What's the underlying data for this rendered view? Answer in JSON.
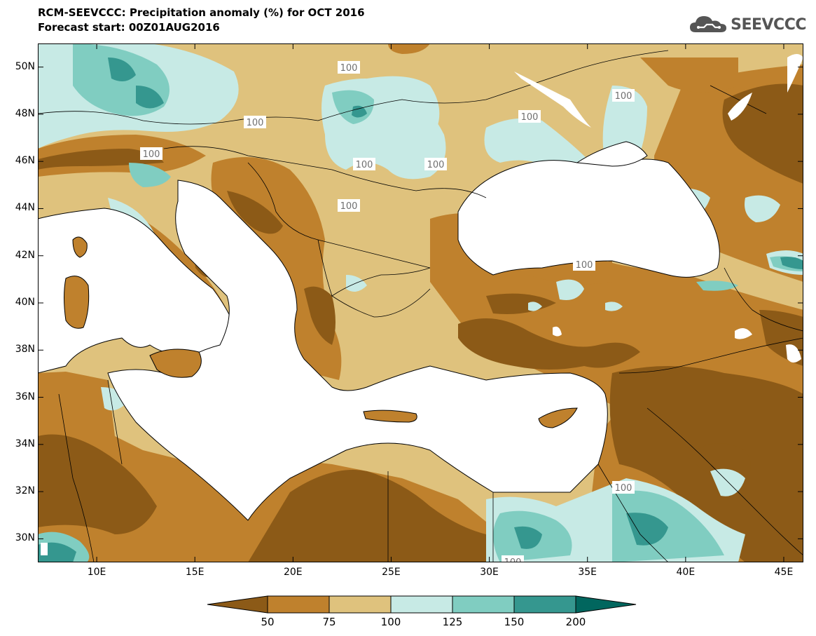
{
  "header": {
    "title": "RCM-SEEVCCC: Precipitation anomaly (%) for OCT 2016",
    "subtitle": "Forecast start: 00Z01AUG2016",
    "logo_text": "SEEVCCC",
    "logo_icon": "cloud-icon"
  },
  "map": {
    "lon_range": [
      7,
      46
    ],
    "lat_range": [
      29,
      51
    ],
    "lat_labels": [
      "50N",
      "48N",
      "46N",
      "44N",
      "42N",
      "40N",
      "38N",
      "36N",
      "34N",
      "32N",
      "30N"
    ],
    "lon_labels": [
      "10E",
      "15E",
      "20E",
      "25E",
      "30E",
      "35E",
      "40E",
      "45E"
    ],
    "contour_label": "100"
  },
  "colorbar": {
    "ticks": [
      "50",
      "75",
      "100",
      "125",
      "150",
      "200"
    ],
    "colors": {
      "below_50": "#8c5a17",
      "50_75": "#bf812d",
      "75_100": "#dfc27d",
      "100_125": "#c7eae5",
      "125_150": "#80cdc1",
      "150_200": "#35978f",
      "above_200": "#01665e"
    }
  }
}
